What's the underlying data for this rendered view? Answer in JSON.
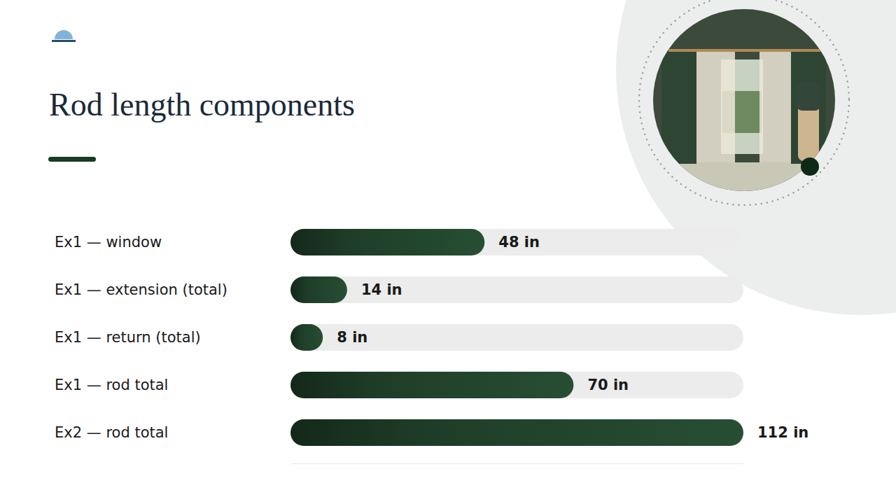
{
  "chart_data": {
    "type": "bar",
    "title": "Rod length components",
    "orientation": "horizontal",
    "categories": [
      "Ex1 — window",
      "Ex1 — extension (total)",
      "Ex1 — return (total)",
      "Ex1 — rod total",
      "Ex2 — rod total"
    ],
    "values": [
      48,
      14,
      8,
      70,
      112
    ],
    "value_labels": [
      "48 in",
      "14 in",
      "8 in",
      "70 in",
      "112 in"
    ],
    "xlim": [
      0,
      112
    ],
    "tick_labels": false,
    "data_labels": true,
    "color": "#1e3d28"
  }
}
